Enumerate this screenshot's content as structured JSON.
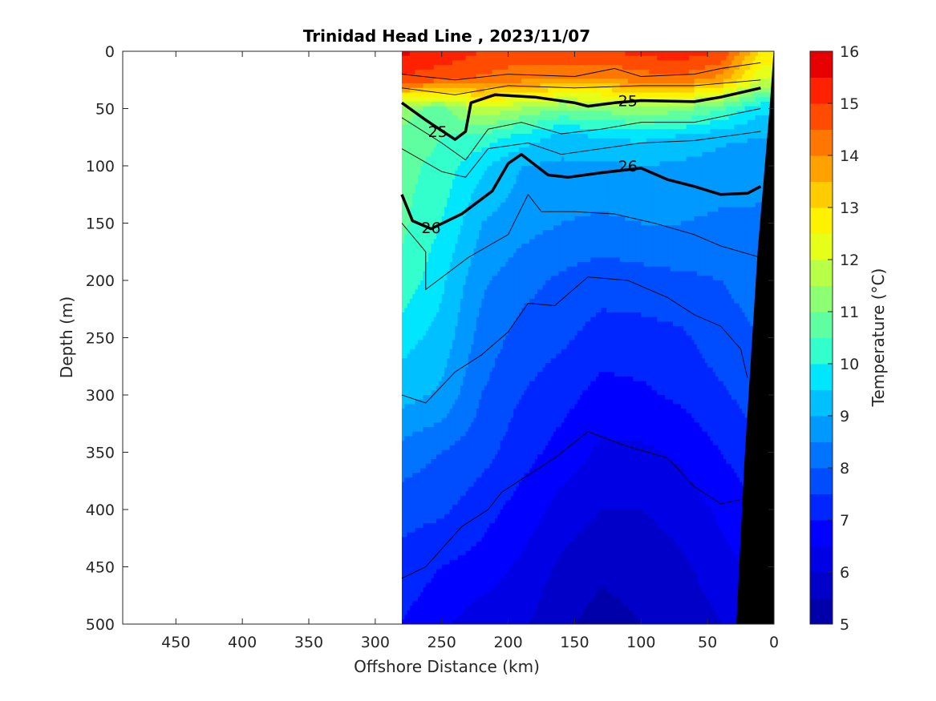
{
  "chart_data": {
    "type": "heatmap",
    "title": "Trinidad Head Line , 2023/11/07",
    "xlabel": "Offshore Distance (km)",
    "ylabel": "Depth (m)",
    "colorbar_label": "Temperature (°C)",
    "xlim": [
      490,
      0
    ],
    "x_reversed": true,
    "ylim": [
      500,
      0
    ],
    "y_reversed": true,
    "x_ticks": [
      450,
      400,
      350,
      300,
      250,
      200,
      150,
      100,
      50,
      0
    ],
    "y_ticks": [
      0,
      50,
      100,
      150,
      200,
      250,
      300,
      350,
      400,
      450,
      500
    ],
    "colorbar": {
      "range": [
        5,
        16
      ],
      "ticks": [
        5,
        6,
        7,
        8,
        9,
        10,
        11,
        12,
        13,
        14,
        15,
        16
      ],
      "levels": [
        5,
        5.5,
        6,
        6.5,
        7,
        7.5,
        8,
        8.5,
        9,
        9.5,
        10,
        10.5,
        11,
        11.5,
        12,
        12.5,
        13,
        13.5,
        14,
        14.5,
        15,
        15.5,
        16
      ],
      "colors": [
        "#00008f",
        "#0000ab",
        "#0000c8",
        "#0000e4",
        "#0000ff",
        "#0026ff",
        "#004cff",
        "#0073ff",
        "#0099ff",
        "#00c0ff",
        "#00e6ff",
        "#33ffcc",
        "#5fffa1",
        "#8cff73",
        "#b8ff48",
        "#e6ff19",
        "#fff200",
        "#ffcc00",
        "#ffa200",
        "#ff7700",
        "#ff4c00",
        "#ff2200",
        "#e60000",
        "#cc0000",
        "#990000"
      ]
    },
    "data_extent_x": [
      280,
      0
    ],
    "distance_km": [
      280,
      250,
      220,
      190,
      160,
      130,
      100,
      70,
      40,
      10
    ],
    "depth_m": [
      0,
      25,
      50,
      75,
      100,
      150,
      200,
      250,
      300,
      350,
      400,
      450,
      500
    ],
    "temperature": [
      [
        15.6,
        15.4,
        15.0,
        14.8,
        15.0,
        14.9,
        15.2,
        15.3,
        15.0,
        13.0
      ],
      [
        14.9,
        14.6,
        14.4,
        14.1,
        14.0,
        13.9,
        14.2,
        14.3,
        13.8,
        12.0
      ],
      [
        11.2,
        10.8,
        12.0,
        11.5,
        11.0,
        11.2,
        11.5,
        11.2,
        10.6,
        9.6
      ],
      [
        10.9,
        10.5,
        10.3,
        9.8,
        9.3,
        9.5,
        9.6,
        9.4,
        9.1,
        9.0
      ],
      [
        10.7,
        10.3,
        9.6,
        9.0,
        8.9,
        8.9,
        9.0,
        8.9,
        8.8,
        8.7
      ],
      [
        10.6,
        10.0,
        9.0,
        8.7,
        8.5,
        8.4,
        8.5,
        8.5,
        8.4,
        8.4
      ],
      [
        10.4,
        9.6,
        8.6,
        8.2,
        7.9,
        7.7,
        7.8,
        7.9,
        8.0,
        8.2
      ],
      [
        9.7,
        9.3,
        8.3,
        7.8,
        7.6,
        7.3,
        7.3,
        7.4,
        7.8,
        8.0
      ],
      [
        9.2,
        8.9,
        8.0,
        7.5,
        7.2,
        6.8,
        6.9,
        7.1,
        7.4,
        7.8
      ],
      [
        8.3,
        8.0,
        7.7,
        7.2,
        6.8,
        6.4,
        6.4,
        6.6,
        7.0,
        7.4
      ],
      [
        7.7,
        7.6,
        7.2,
        6.8,
        6.3,
        6.0,
        6.0,
        6.2,
        6.6,
        7.0
      ],
      [
        7.3,
        7.0,
        6.8,
        6.4,
        5.9,
        5.6,
        5.7,
        5.9,
        6.3,
        6.7
      ],
      [
        7.0,
        6.6,
        6.2,
        6.1,
        5.6,
        5.3,
        5.5,
        5.6,
        6.0,
        6.5
      ]
    ],
    "density_contours": [
      {
        "label": "25",
        "points": [
          [
            280,
            45
          ],
          [
            262,
            60
          ],
          [
            240,
            77
          ],
          [
            232,
            70
          ],
          [
            228,
            45
          ],
          [
            210,
            38
          ],
          [
            180,
            40
          ],
          [
            150,
            45
          ],
          [
            140,
            48
          ],
          [
            120,
            45
          ],
          [
            100,
            43
          ],
          [
            60,
            44
          ],
          [
            40,
            40
          ],
          [
            10,
            32
          ]
        ],
        "label_positions": [
          [
            253,
            70
          ],
          [
            110,
            43
          ]
        ]
      },
      {
        "label": "26",
        "points": [
          [
            280,
            125
          ],
          [
            272,
            148
          ],
          [
            258,
            155
          ],
          [
            235,
            142
          ],
          [
            212,
            122
          ],
          [
            200,
            98
          ],
          [
            190,
            90
          ],
          [
            170,
            108
          ],
          [
            155,
            110
          ],
          [
            130,
            106
          ],
          [
            100,
            102
          ],
          [
            80,
            112
          ],
          [
            60,
            118
          ],
          [
            40,
            125
          ],
          [
            20,
            124
          ],
          [
            10,
            118
          ]
        ],
        "label_positions": [
          [
            258,
            154
          ],
          [
            110,
            100
          ]
        ]
      }
    ],
    "thin_contours": [
      [
        [
          280,
          20
        ],
        [
          240,
          25
        ],
        [
          200,
          20
        ],
        [
          150,
          22
        ],
        [
          120,
          15
        ],
        [
          100,
          22
        ],
        [
          60,
          20
        ],
        [
          40,
          15
        ],
        [
          10,
          10
        ]
      ],
      [
        [
          280,
          32
        ],
        [
          240,
          38
        ],
        [
          200,
          30
        ],
        [
          150,
          32
        ],
        [
          100,
          30
        ],
        [
          60,
          30
        ],
        [
          10,
          25
        ]
      ],
      [
        [
          280,
          58
        ],
        [
          250,
          80
        ],
        [
          232,
          95
        ],
        [
          215,
          68
        ],
        [
          190,
          62
        ],
        [
          160,
          72
        ],
        [
          130,
          68
        ],
        [
          100,
          62
        ],
        [
          60,
          62
        ],
        [
          10,
          50
        ]
      ],
      [
        [
          280,
          85
        ],
        [
          250,
          105
        ],
        [
          232,
          110
        ],
        [
          215,
          85
        ],
        [
          185,
          80
        ],
        [
          160,
          90
        ],
        [
          130,
          85
        ],
        [
          100,
          80
        ],
        [
          60,
          78
        ],
        [
          10,
          70
        ]
      ],
      [
        [
          280,
          150
        ],
        [
          262,
          175
        ],
        [
          262,
          208
        ],
        [
          230,
          180
        ],
        [
          200,
          160
        ],
        [
          185,
          125
        ],
        [
          175,
          140
        ],
        [
          150,
          140
        ],
        [
          120,
          142
        ],
        [
          90,
          150
        ],
        [
          60,
          160
        ],
        [
          40,
          170
        ],
        [
          10,
          180
        ]
      ],
      [
        [
          280,
          300
        ],
        [
          262,
          307
        ],
        [
          240,
          280
        ],
        [
          220,
          265
        ],
        [
          200,
          245
        ],
        [
          185,
          220
        ],
        [
          165,
          222
        ],
        [
          140,
          197
        ],
        [
          110,
          200
        ],
        [
          80,
          215
        ],
        [
          60,
          230
        ],
        [
          40,
          240
        ],
        [
          25,
          260
        ],
        [
          20,
          285
        ]
      ],
      [
        [
          280,
          460
        ],
        [
          262,
          450
        ],
        [
          235,
          415
        ],
        [
          215,
          400
        ],
        [
          205,
          385
        ],
        [
          185,
          370
        ],
        [
          165,
          355
        ],
        [
          140,
          332
        ],
        [
          110,
          345
        ],
        [
          80,
          355
        ],
        [
          60,
          380
        ],
        [
          40,
          395
        ],
        [
          20,
          390
        ]
      ]
    ],
    "bathymetry": {
      "polygon": [
        [
          0,
          0
        ],
        [
          0,
          500
        ],
        [
          28,
          500
        ],
        [
          22,
          360
        ],
        [
          12,
          175
        ],
        [
          3,
          50
        ],
        [
          0,
          0
        ]
      ]
    },
    "grid": false,
    "legend": "colorbar-right"
  }
}
